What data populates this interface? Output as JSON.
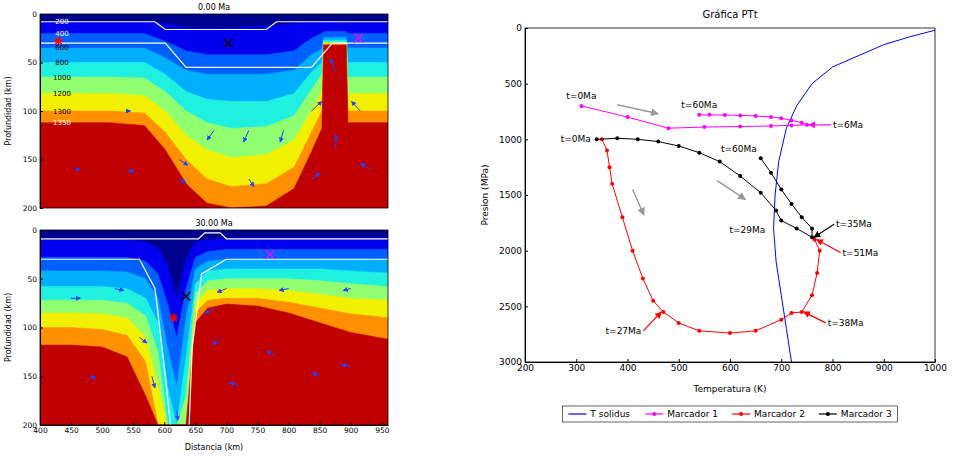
{
  "chart_data": [
    {
      "type": "contour",
      "title": "0.00 Ma",
      "ylabel": "Profundidad (km)",
      "xlim": [
        0,
        1000
      ],
      "ylim": [
        0,
        200
      ],
      "yticks": [
        0,
        50,
        100,
        150,
        200
      ],
      "tick_labels": "y",
      "color": "#00008f",
      "x": [
        0,
        100,
        200,
        300,
        360,
        420,
        480,
        550,
        650,
        730,
        780,
        810,
        815,
        880,
        885,
        950,
        1000
      ],
      "series": [
        {
          "name": "200",
          "color": "#0000ee",
          "values": [
            8,
            8,
            8,
            8,
            10,
            14,
            14,
            14,
            12,
            10,
            8,
            8,
            8,
            8,
            8,
            8,
            8
          ]
        },
        {
          "name": "400",
          "color": "#0060ff",
          "values": [
            20,
            20,
            20,
            20,
            28,
            38,
            42,
            42,
            42,
            38,
            25,
            20,
            18,
            18,
            20,
            20,
            20
          ]
        },
        {
          "name": "600",
          "color": "#00b0ff",
          "values": [
            35,
            35,
            35,
            35,
            45,
            58,
            62,
            62,
            62,
            58,
            42,
            36,
            24,
            24,
            35,
            35,
            35
          ]
        },
        {
          "name": "800",
          "color": "#20f0e0",
          "values": [
            50,
            50,
            50,
            50,
            62,
            80,
            88,
            90,
            90,
            82,
            60,
            50,
            27,
            27,
            50,
            50,
            50
          ]
        },
        {
          "name": "1000",
          "color": "#90ff70",
          "values": [
            65,
            65,
            65,
            66,
            80,
            100,
            112,
            118,
            116,
            105,
            78,
            62,
            29,
            29,
            65,
            65,
            65
          ]
        },
        {
          "name": "1200",
          "color": "#f0f000",
          "values": [
            82,
            82,
            82,
            84,
            100,
            125,
            140,
            148,
            145,
            130,
            100,
            80,
            30,
            30,
            82,
            82,
            82
          ]
        },
        {
          "name": "1300",
          "color": "#ff9000",
          "values": [
            100,
            100,
            100,
            102,
            122,
            150,
            170,
            178,
            175,
            158,
            122,
            100,
            31,
            31,
            100,
            100,
            100
          ]
        },
        {
          "name": "1350",
          "color": "#c00000",
          "values": [
            112,
            112,
            112,
            115,
            140,
            175,
            195,
            200,
            198,
            180,
            142,
            118,
            32,
            32,
            112,
            112,
            112
          ]
        }
      ],
      "boundaries": [
        {
          "color": "#ffffff",
          "x": [
            0,
            330,
            360,
            650,
            680,
            1000
          ],
          "values": [
            8,
            8,
            16,
            16,
            8,
            8
          ]
        },
        {
          "color": "#ffffff",
          "x": [
            0,
            360,
            420,
            780,
            840,
            1000
          ],
          "values": [
            30,
            30,
            55,
            55,
            30,
            30
          ]
        }
      ],
      "vectors": {
        "color": "#2040ff",
        "x": [
          100,
          250,
          400,
          500,
          600,
          700,
          780,
          850,
          920,
          850,
          950,
          780,
          600,
          400,
          250
        ],
        "y": [
          160,
          160,
          150,
          120,
          120,
          120,
          100,
          140,
          100,
          60,
          160,
          170,
          170,
          170,
          100
        ],
        "u": [
          15,
          20,
          25,
          -20,
          -15,
          -10,
          30,
          0,
          -25,
          -15,
          -30,
          25,
          15,
          20,
          10
        ],
        "v": [
          0,
          3,
          6,
          10,
          12,
          12,
          -10,
          -16,
          -10,
          -14,
          -6,
          -6,
          8,
          4,
          0
        ]
      },
      "points": [
        {
          "x": 53,
          "y": 28,
          "color": "#ff0000",
          "marker": "asterisk"
        },
        {
          "x": 541,
          "y": 30,
          "color": "#000000",
          "marker": "x"
        },
        {
          "x": 915,
          "y": 25,
          "color": "#ff00ff",
          "marker": "x"
        }
      ]
    },
    {
      "type": "contour",
      "title": "30.00 Ma",
      "xlabel": "Distancia (km)",
      "ylabel": "Profundidad (km)",
      "xlim": [
        400,
        960
      ],
      "ylim": [
        0,
        200
      ],
      "xticks": [
        400,
        450,
        500,
        550,
        600,
        650,
        700,
        750,
        800,
        850,
        900,
        950
      ],
      "yticks": [
        0,
        50,
        100,
        150,
        200
      ],
      "color": "#00008f",
      "x": [
        400,
        450,
        500,
        540,
        570,
        590,
        605,
        620,
        635,
        650,
        670,
        700,
        750,
        800,
        850,
        900,
        960
      ],
      "series": [
        {
          "color": "#0000ee",
          "values": [
            10,
            10,
            10,
            10,
            12,
            18,
            35,
            70,
            30,
            12,
            10,
            8,
            8,
            8,
            8,
            8,
            8
          ]
        },
        {
          "color": "#0060ff",
          "values": [
            28,
            28,
            28,
            28,
            32,
            45,
            75,
            110,
            60,
            28,
            22,
            20,
            20,
            20,
            20,
            20,
            20
          ]
        },
        {
          "color": "#00b0ff",
          "values": [
            42,
            42,
            42,
            43,
            50,
            70,
            120,
            160,
            90,
            40,
            32,
            30,
            30,
            30,
            30,
            30,
            30
          ]
        },
        {
          "color": "#20f0e0",
          "values": [
            58,
            58,
            58,
            60,
            70,
            95,
            160,
            200,
            130,
            55,
            42,
            40,
            40,
            40,
            40,
            42,
            44
          ]
        },
        {
          "color": "#90ff70",
          "values": [
            72,
            72,
            72,
            75,
            88,
            125,
            200,
            200,
            170,
            65,
            52,
            50,
            50,
            50,
            52,
            55,
            58
          ]
        },
        {
          "color": "#f0f000",
          "values": [
            85,
            85,
            86,
            90,
            110,
            160,
            200,
            200,
            200,
            75,
            62,
            60,
            60,
            62,
            66,
            70,
            72
          ]
        },
        {
          "color": "#ff9000",
          "values": [
            100,
            100,
            102,
            108,
            135,
            200,
            200,
            200,
            200,
            85,
            72,
            70,
            70,
            74,
            80,
            86,
            90
          ]
        },
        {
          "color": "#c00000",
          "values": [
            118,
            118,
            120,
            130,
            170,
            200,
            200,
            200,
            200,
            95,
            80,
            76,
            78,
            85,
            95,
            105,
            112
          ]
        }
      ],
      "boundaries": [
        {
          "color": "#ffffff",
          "x": [
            400,
            655,
            665,
            690,
            700,
            960
          ],
          "values": [
            9,
            9,
            3,
            3,
            9,
            9
          ]
        },
        {
          "color": "#ffffff",
          "x": [
            400,
            560,
            585,
            600,
            610
          ],
          "values": [
            30,
            30,
            60,
            140,
            200
          ]
        },
        {
          "color": "#ffffff",
          "x": [
            640,
            645,
            660,
            700,
            960
          ],
          "values": [
            200,
            120,
            45,
            30,
            30
          ]
        }
      ],
      "vectors": {
        "color": "#2040ff",
        "x": [
          450,
          520,
          580,
          560,
          690,
          720,
          780,
          850,
          900,
          700,
          800,
          900,
          480,
          680,
          620
        ],
        "y": [
          70,
          60,
          150,
          110,
          110,
          160,
          130,
          150,
          140,
          60,
          60,
          60,
          150,
          80,
          185
        ],
        "u": [
          15,
          15,
          5,
          12,
          -12,
          -15,
          -15,
          -12,
          -15,
          -15,
          -15,
          -12,
          10,
          -15,
          2
        ],
        "v": [
          0,
          2,
          12,
          6,
          8,
          -4,
          -6,
          -4,
          -2,
          4,
          2,
          2,
          2,
          6,
          10
        ]
      },
      "points": [
        {
          "x": 615,
          "y": 90,
          "color": "#ff0000",
          "marker": "asterisk"
        },
        {
          "x": 635,
          "y": 68,
          "color": "#000000",
          "marker": "x"
        },
        {
          "x": 770,
          "y": 25,
          "color": "#ff00ff",
          "marker": "x"
        }
      ]
    },
    {
      "type": "line",
      "title": "Gráfica PTt",
      "xlabel": "Temperatura (K)",
      "ylabel": "Presion (MPa)",
      "xlim": [
        200,
        1000
      ],
      "ylim": [
        0,
        3000
      ],
      "xticks": [
        200,
        300,
        400,
        500,
        600,
        700,
        800,
        900,
        1000
      ],
      "yticks": [
        0,
        500,
        1000,
        1500,
        2000,
        2500,
        3000
      ],
      "legend": "bottom",
      "series": [
        {
          "name": "T solidus",
          "color": "#0000ff",
          "marker": "none",
          "x": [
            1000,
            950,
            900,
            850,
            800,
            760,
            730,
            710,
            695,
            688,
            685,
            690,
            700,
            710,
            720
          ],
          "values": [
            20,
            80,
            150,
            250,
            350,
            500,
            700,
            900,
            1200,
            1500,
            1800,
            2100,
            2400,
            2700,
            3000
          ]
        },
        {
          "name": "Marcador 1",
          "color": "#ff00ff",
          "marker": "circle",
          "x": [
            310,
            400,
            480,
            550,
            620,
            680,
            720,
            750,
            740,
            720,
            700,
            680,
            650,
            620,
            590,
            560,
            540
          ],
          "values": [
            700,
            800,
            900,
            890,
            885,
            880,
            875,
            870,
            850,
            830,
            810,
            800,
            790,
            785,
            782,
            780,
            780
          ]
        },
        {
          "name": "Marcador 2",
          "color": "#ff0000",
          "marker": "circle",
          "x": [
            350,
            360,
            365,
            370,
            390,
            410,
            430,
            450,
            470,
            500,
            540,
            600,
            650,
            700,
            720,
            740,
            760,
            770,
            775,
            765
          ],
          "values": [
            1000,
            1100,
            1250,
            1400,
            1700,
            2000,
            2250,
            2450,
            2550,
            2650,
            2720,
            2740,
            2720,
            2620,
            2560,
            2550,
            2400,
            2200,
            2000,
            1900
          ]
        },
        {
          "name": "Marcador 3",
          "color": "#000000",
          "marker": "circle",
          "x": [
            340,
            380,
            420,
            460,
            500,
            540,
            580,
            620,
            660,
            690,
            700,
            730,
            760,
            760,
            740,
            720,
            700,
            680,
            660
          ],
          "values": [
            1000,
            990,
            1000,
            1020,
            1060,
            1120,
            1200,
            1330,
            1480,
            1640,
            1730,
            1800,
            1880,
            1800,
            1700,
            1580,
            1450,
            1300,
            1170
          ]
        }
      ],
      "annotations": [
        {
          "text": "t=0Ma",
          "x": 310,
          "y": 700
        },
        {
          "text": "t=60Ma",
          "x": 540,
          "y": 780
        },
        {
          "text": "t=6Ma",
          "x": 750,
          "y": 870
        },
        {
          "text": "t=0Ma",
          "x": 340,
          "y": 1000
        },
        {
          "text": "t=60Ma",
          "x": 660,
          "y": 1170
        },
        {
          "text": "t=29Ma",
          "x": 700,
          "y": 1730
        },
        {
          "text": "t=35Ma",
          "x": 760,
          "y": 1880
        },
        {
          "text": "t=51Ma",
          "x": 765,
          "y": 1900
        },
        {
          "text": "t=38Ma",
          "x": 740,
          "y": 2550
        },
        {
          "text": "t=27Ma",
          "x": 470,
          "y": 2550
        }
      ]
    }
  ]
}
